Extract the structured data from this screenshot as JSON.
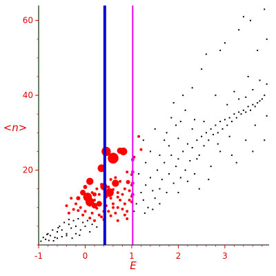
{
  "chart_data": {
    "type": "scatter",
    "xlabel": "E",
    "ylabel": "<n>",
    "xlim": [
      -1,
      3.95
    ],
    "ylim": [
      0,
      64
    ],
    "x_ticks": [
      -1,
      0,
      1,
      2,
      3
    ],
    "y_ticks": [
      20,
      40,
      60
    ],
    "grid": false,
    "colors": {
      "axis_labels": "#e00000",
      "black_points": "#000000",
      "red_points": "#ff0000",
      "blue_line": "#0000dd",
      "magenta_line": "#ee00ee",
      "y_axis": "#335533"
    },
    "vertical_lines": [
      {
        "x": 0.42,
        "color": "#0000dd"
      },
      {
        "x": 1.02,
        "color": "#ee00ee"
      }
    ],
    "red_large_points": [
      [
        0.0,
        15.5
      ],
      [
        -0.05,
        14.0
      ],
      [
        0.1,
        17.0
      ],
      [
        0.05,
        12.8
      ],
      [
        0.2,
        13.5
      ],
      [
        0.35,
        20.5
      ],
      [
        0.45,
        25.0
      ],
      [
        0.6,
        23.2
      ],
      [
        0.75,
        25.2
      ],
      [
        0.82,
        25.0
      ],
      [
        0.65,
        16.5
      ],
      [
        0.52,
        14.0
      ],
      [
        0.92,
        16.8
      ],
      [
        0.2,
        10.5
      ],
      [
        0.4,
        15.6
      ],
      [
        0.1,
        11.5
      ],
      [
        -0.15,
        12.5
      ],
      [
        0.3,
        11.0
      ]
    ],
    "red_small_points": [
      [
        -0.3,
        12.5
      ],
      [
        -0.2,
        11.0
      ],
      [
        -0.1,
        10.0
      ],
      [
        0.0,
        9.0
      ],
      [
        -0.25,
        9.5
      ],
      [
        0.15,
        8.5
      ],
      [
        0.25,
        9.8
      ],
      [
        0.3,
        8.0
      ],
      [
        0.35,
        7.5
      ],
      [
        0.2,
        6.5
      ],
      [
        0.45,
        10.5
      ],
      [
        0.5,
        9.0
      ],
      [
        0.55,
        12.5
      ],
      [
        0.6,
        11.0
      ],
      [
        0.65,
        8.5
      ],
      [
        0.7,
        10.0
      ],
      [
        0.75,
        12.0
      ],
      [
        0.8,
        13.5
      ],
      [
        0.85,
        11.0
      ],
      [
        0.9,
        9.0
      ],
      [
        0.95,
        14.5
      ],
      [
        1.0,
        18.8
      ],
      [
        1.0,
        16.0
      ],
      [
        1.05,
        23.5
      ],
      [
        0.85,
        15.0
      ],
      [
        0.7,
        14.0
      ],
      [
        0.5,
        15.5
      ],
      [
        0.45,
        12.8
      ],
      [
        0.3,
        13.5
      ],
      [
        0.15,
        14.0
      ],
      [
        -0.05,
        8.0
      ],
      [
        -0.4,
        10.5
      ],
      [
        -0.35,
        8.5
      ],
      [
        0.1,
        7.2
      ],
      [
        0.4,
        6.8
      ],
      [
        0.55,
        7.8
      ],
      [
        0.7,
        6.5
      ],
      [
        0.85,
        8.0
      ],
      [
        1.0,
        11.5
      ],
      [
        1.0,
        13.0
      ],
      [
        0.65,
        18.0
      ],
      [
        0.55,
        17.5
      ],
      [
        0.75,
        17.0
      ],
      [
        0.9,
        19.5
      ],
      [
        1.15,
        29.0
      ],
      [
        1.2,
        25.5
      ],
      [
        0.05,
        13.0
      ],
      [
        0.25,
        15.0
      ],
      [
        0.35,
        16.2
      ],
      [
        -0.15,
        9.2
      ],
      [
        0.6,
        10.0
      ],
      [
        0.8,
        9.6
      ],
      [
        0.95,
        12.0
      ],
      [
        0.4,
        9.0
      ],
      [
        0.5,
        13.5
      ],
      [
        0.2,
        12.0
      ],
      [
        0.7,
        12.8
      ],
      [
        0.9,
        7.0
      ],
      [
        0.1,
        10.6
      ],
      [
        0.6,
        14.8
      ]
    ],
    "magenta_points": [
      [
        1.02,
        22.8
      ],
      [
        1.02,
        19.5
      ],
      [
        1.02,
        16.5
      ],
      [
        1.02,
        13.5
      ]
    ],
    "black_points": [
      [
        -0.95,
        1.0
      ],
      [
        -0.9,
        2.0
      ],
      [
        -0.85,
        1.5
      ],
      [
        -0.8,
        3.0
      ],
      [
        -0.78,
        1.2
      ],
      [
        -0.75,
        2.5
      ],
      [
        -0.7,
        4.0
      ],
      [
        -0.65,
        2.0
      ],
      [
        -0.6,
        3.5
      ],
      [
        -0.55,
        5.0
      ],
      [
        -0.5,
        4.0
      ],
      [
        -0.45,
        6.0
      ],
      [
        -0.4,
        3.0
      ],
      [
        -0.35,
        5.5
      ],
      [
        -0.3,
        4.5
      ],
      [
        -0.25,
        6.5
      ],
      [
        -0.2,
        5.0
      ],
      [
        -0.15,
        7.0
      ],
      [
        -0.1,
        4.0
      ],
      [
        -0.05,
        6.0
      ],
      [
        0.0,
        5.0
      ],
      [
        0.05,
        6.5
      ],
      [
        0.1,
        3.5
      ],
      [
        -0.6,
        1.8
      ],
      [
        -0.4,
        2.5
      ],
      [
        -0.2,
        3.0
      ],
      [
        0.15,
        5.5
      ],
      [
        0.25,
        4.8
      ],
      [
        -0.82,
        2.8
      ],
      [
        -0.68,
        1.1
      ],
      [
        -0.5,
        2.2
      ],
      [
        -0.28,
        1.8
      ],
      [
        -0.12,
        2.6
      ],
      [
        -0.35,
        6.8
      ],
      [
        -0.58,
        4.6
      ],
      [
        1.2,
        14.0
      ],
      [
        1.25,
        12.0
      ],
      [
        1.3,
        16.0
      ],
      [
        1.35,
        10.0
      ],
      [
        1.4,
        18.0
      ],
      [
        1.45,
        14.5
      ],
      [
        1.5,
        12.5
      ],
      [
        1.55,
        20.0
      ],
      [
        1.6,
        15.0
      ],
      [
        1.65,
        17.5
      ],
      [
        1.7,
        22.0
      ],
      [
        1.75,
        14.0
      ],
      [
        1.8,
        19.0
      ],
      [
        1.85,
        24.0
      ],
      [
        1.9,
        16.5
      ],
      [
        1.95,
        21.0
      ],
      [
        2.0,
        23.0
      ],
      [
        2.05,
        18.0
      ],
      [
        2.1,
        25.0
      ],
      [
        2.15,
        20.0
      ],
      [
        2.2,
        27.0
      ],
      [
        2.25,
        22.5
      ],
      [
        2.3,
        26.0
      ],
      [
        2.35,
        19.0
      ],
      [
        2.4,
        28.0
      ],
      [
        2.45,
        24.0
      ],
      [
        2.5,
        29.0
      ],
      [
        2.55,
        26.5
      ],
      [
        2.6,
        30.0
      ],
      [
        2.65,
        28.0
      ],
      [
        2.7,
        31.0
      ],
      [
        2.75,
        29.5
      ],
      [
        2.8,
        32.0
      ],
      [
        2.85,
        30.0
      ],
      [
        2.9,
        33.0
      ],
      [
        2.95,
        31.0
      ],
      [
        3.0,
        33.5
      ],
      [
        3.05,
        32.0
      ],
      [
        3.1,
        34.0
      ],
      [
        3.15,
        33.0
      ],
      [
        3.2,
        35.0
      ],
      [
        3.25,
        34.0
      ],
      [
        3.3,
        35.5
      ],
      [
        3.35,
        35.0
      ],
      [
        3.4,
        36.0
      ],
      [
        3.45,
        35.5
      ],
      [
        3.5,
        37.0
      ],
      [
        3.55,
        36.0
      ],
      [
        3.6,
        37.5
      ],
      [
        3.65,
        37.0
      ],
      [
        3.7,
        38.0
      ],
      [
        3.75,
        38.5
      ],
      [
        3.8,
        39.0
      ],
      [
        3.85,
        40.0
      ],
      [
        3.4,
        61.0
      ],
      [
        3.55,
        60.0
      ],
      [
        3.85,
        63.0
      ],
      [
        3.9,
        55.0
      ],
      [
        3.7,
        52.0
      ],
      [
        3.3,
        57.5
      ],
      [
        3.0,
        54.0
      ],
      [
        2.9,
        52.0
      ],
      [
        2.5,
        47.0
      ],
      [
        2.6,
        51.0
      ],
      [
        2.3,
        42.0
      ],
      [
        2.1,
        40.0
      ],
      [
        1.9,
        38.0
      ],
      [
        3.5,
        45.0
      ],
      [
        3.75,
        44.0
      ],
      [
        3.9,
        43.0
      ],
      [
        3.2,
        41.0
      ],
      [
        3.3,
        39.0
      ],
      [
        2.8,
        40.0
      ],
      [
        1.95,
        32.0
      ],
      [
        1.5,
        31.0
      ],
      [
        1.4,
        25.0
      ],
      [
        3.45,
        28.0
      ],
      [
        3.15,
        24.0
      ],
      [
        2.9,
        25.0
      ],
      [
        2.7,
        21.0
      ],
      [
        2.4,
        23.0
      ],
      [
        2.2,
        17.0
      ],
      [
        2.45,
        15.0
      ],
      [
        2.65,
        17.5
      ],
      [
        3.85,
        28.0
      ],
      [
        3.6,
        25.0
      ],
      [
        3.25,
        22.0
      ],
      [
        2.3,
        31.0
      ],
      [
        2.05,
        33.0
      ],
      [
        1.85,
        34.0
      ],
      [
        1.7,
        28.0
      ],
      [
        1.3,
        22.0
      ],
      [
        1.25,
        28.0
      ],
      [
        1.15,
        19.0
      ],
      [
        1.1,
        11.0
      ],
      [
        1.05,
        9.0
      ],
      [
        1.28,
        8.5
      ],
      [
        1.45,
        9.5
      ],
      [
        1.6,
        11.0
      ],
      [
        2.0,
        14.0
      ],
      [
        3.65,
        32.0
      ],
      [
        3.9,
        34.5
      ],
      [
        3.1,
        29.0
      ],
      [
        2.55,
        33.0
      ],
      [
        2.0,
        28.5
      ],
      [
        1.8,
        26.5
      ],
      [
        1.6,
        24.0
      ],
      [
        2.15,
        36.0
      ],
      [
        3.05,
        37.5
      ],
      [
        3.45,
        39.5
      ],
      [
        3.6,
        41.5
      ],
      [
        1.75,
        30.0
      ],
      [
        2.35,
        33.5
      ],
      [
        2.85,
        27.0
      ]
    ]
  }
}
